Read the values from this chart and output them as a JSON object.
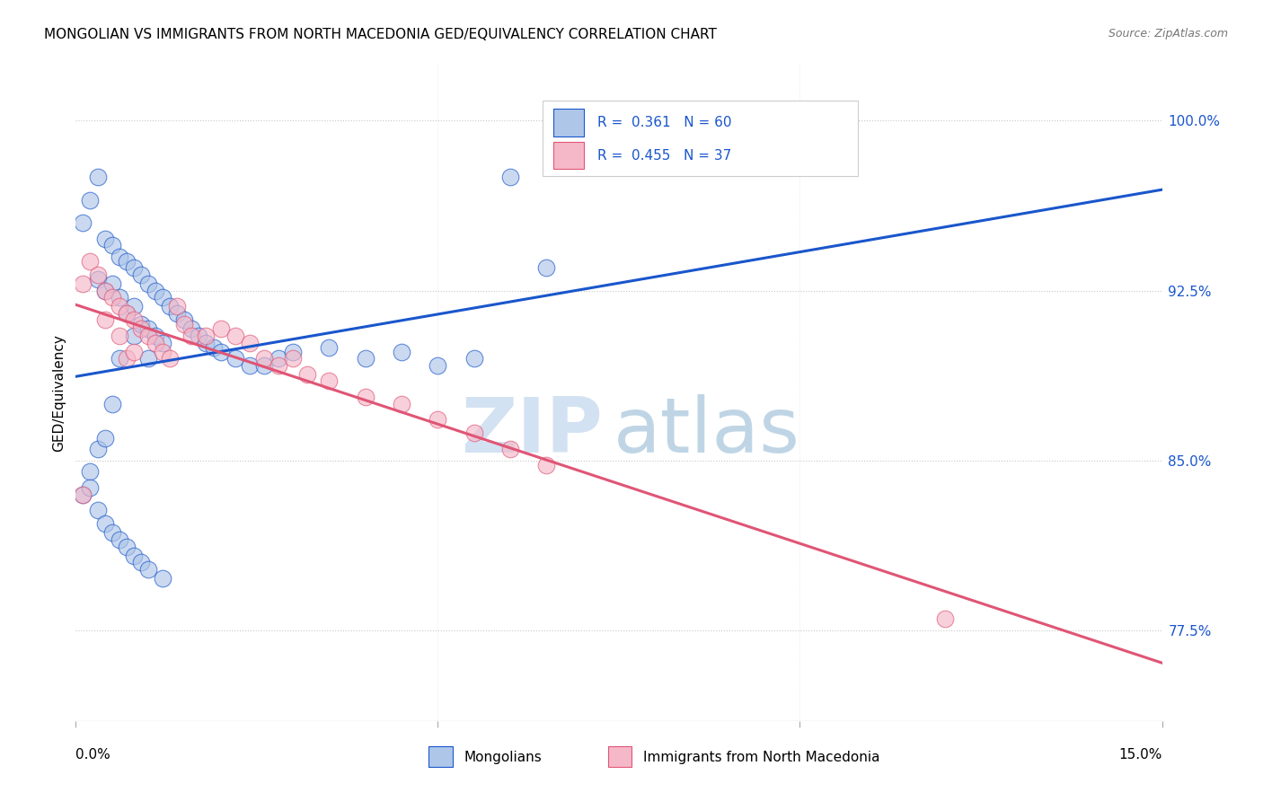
{
  "title": "MONGOLIAN VS IMMIGRANTS FROM NORTH MACEDONIA GED/EQUIVALENCY CORRELATION CHART",
  "source": "Source: ZipAtlas.com",
  "ylabel": "GED/Equivalency",
  "ytick_labels": [
    "77.5%",
    "85.0%",
    "92.5%",
    "100.0%"
  ],
  "ytick_values": [
    0.775,
    0.85,
    0.925,
    1.0
  ],
  "xmin": 0.0,
  "xmax": 0.15,
  "ymin": 0.735,
  "ymax": 1.025,
  "mongolian_color": "#aec6e8",
  "macedonia_color": "#f5b8c8",
  "trend_blue": "#1a56cc",
  "trend_pink": "#e05575",
  "mongolians_x": [
    0.001,
    0.001,
    0.002,
    0.002,
    0.003,
    0.003,
    0.003,
    0.004,
    0.004,
    0.004,
    0.005,
    0.005,
    0.005,
    0.006,
    0.006,
    0.006,
    0.007,
    0.007,
    0.008,
    0.008,
    0.008,
    0.009,
    0.009,
    0.01,
    0.01,
    0.01,
    0.011,
    0.011,
    0.012,
    0.012,
    0.013,
    0.014,
    0.015,
    0.016,
    0.017,
    0.018,
    0.019,
    0.02,
    0.022,
    0.024,
    0.026,
    0.028,
    0.03,
    0.035,
    0.04,
    0.045,
    0.05,
    0.055,
    0.06,
    0.065,
    0.002,
    0.003,
    0.004,
    0.005,
    0.006,
    0.007,
    0.008,
    0.009,
    0.01,
    0.012
  ],
  "mongolians_y": [
    0.955,
    0.835,
    0.965,
    0.845,
    0.975,
    0.93,
    0.855,
    0.948,
    0.925,
    0.86,
    0.945,
    0.928,
    0.875,
    0.94,
    0.922,
    0.895,
    0.938,
    0.915,
    0.935,
    0.918,
    0.905,
    0.932,
    0.91,
    0.928,
    0.908,
    0.895,
    0.925,
    0.905,
    0.922,
    0.902,
    0.918,
    0.915,
    0.912,
    0.908,
    0.905,
    0.902,
    0.9,
    0.898,
    0.895,
    0.892,
    0.892,
    0.895,
    0.898,
    0.9,
    0.895,
    0.898,
    0.892,
    0.895,
    0.975,
    0.935,
    0.838,
    0.828,
    0.822,
    0.818,
    0.815,
    0.812,
    0.808,
    0.805,
    0.802,
    0.798
  ],
  "macedonia_x": [
    0.001,
    0.002,
    0.003,
    0.004,
    0.004,
    0.005,
    0.006,
    0.006,
    0.007,
    0.007,
    0.008,
    0.008,
    0.009,
    0.01,
    0.011,
    0.012,
    0.013,
    0.014,
    0.015,
    0.016,
    0.018,
    0.02,
    0.022,
    0.024,
    0.026,
    0.028,
    0.03,
    0.032,
    0.035,
    0.04,
    0.045,
    0.05,
    0.055,
    0.06,
    0.065,
    0.12,
    0.001
  ],
  "macedonia_y": [
    0.928,
    0.938,
    0.932,
    0.925,
    0.912,
    0.922,
    0.918,
    0.905,
    0.915,
    0.895,
    0.912,
    0.898,
    0.908,
    0.905,
    0.902,
    0.898,
    0.895,
    0.918,
    0.91,
    0.905,
    0.905,
    0.908,
    0.905,
    0.902,
    0.895,
    0.892,
    0.895,
    0.888,
    0.885,
    0.878,
    0.875,
    0.868,
    0.862,
    0.855,
    0.848,
    0.78,
    0.835
  ]
}
